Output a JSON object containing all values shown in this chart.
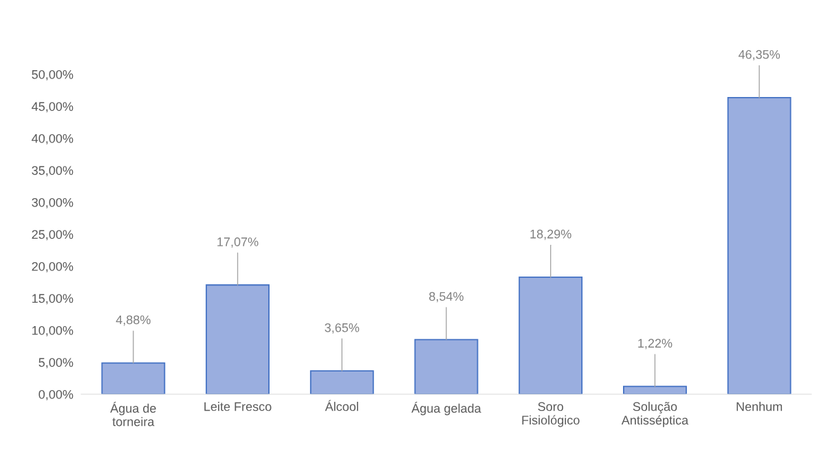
{
  "chart_data": {
    "type": "bar",
    "categories": [
      "Água de torneira",
      "Leite Fresco",
      "Álcool",
      "Água gelada",
      "Soro Fisiológico",
      "Solução Antisséptica",
      "Nenhum"
    ],
    "values": [
      4.88,
      17.07,
      3.65,
      8.54,
      18.29,
      1.22,
      46.35
    ],
    "value_labels": [
      "4,88%",
      "17,07%",
      "3,65%",
      "8,54%",
      "18,29%",
      "1,22%",
      "46,35%"
    ],
    "color": "#9aaedf",
    "ylim": [
      0,
      50
    ],
    "yticks": [
      {
        "value": 0,
        "label": "0,00%"
      },
      {
        "value": 5,
        "label": "5,00%"
      },
      {
        "value": 10,
        "label": "10,00%"
      },
      {
        "value": 15,
        "label": "15,00%"
      },
      {
        "value": 20,
        "label": "20,00%"
      },
      {
        "value": 25,
        "label": "25,00%"
      },
      {
        "value": 30,
        "label": "30,00%"
      },
      {
        "value": 35,
        "label": "35,00%"
      },
      {
        "value": 40,
        "label": "40,00%"
      },
      {
        "value": 45,
        "label": "45,00%"
      },
      {
        "value": 50,
        "label": "50,00%"
      }
    ],
    "grid": false
  }
}
